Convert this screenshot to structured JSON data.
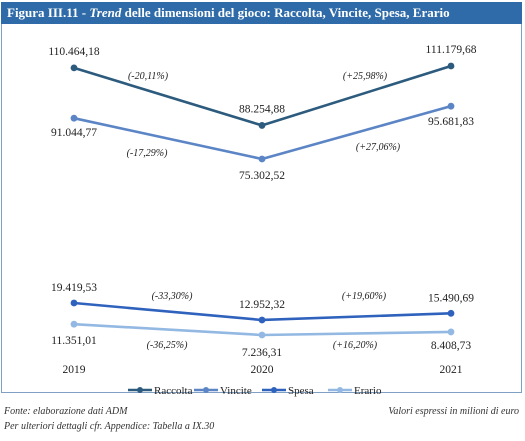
{
  "figure": {
    "title_prefix": "Figura III.11 - ",
    "title_italic": "Trend",
    "title_rest": " delle dimensioni del gioco: Raccolta, Vincite, Spesa, Erario"
  },
  "chart_data": {
    "type": "line",
    "categories": [
      "2019",
      "2020",
      "2021"
    ],
    "series": [
      {
        "name": "Raccolta",
        "color": "#2c5b7e",
        "values": [
          110464.18,
          88254.88,
          111179.68
        ],
        "value_labels": [
          "110.464,18",
          "88.254,88",
          "111.179,68"
        ],
        "change_labels": [
          "(-20,11%)",
          "(+25,98%)"
        ]
      },
      {
        "name": "Vincite",
        "color": "#5c85c6",
        "values": [
          91044.77,
          75302.52,
          95681.83
        ],
        "value_labels": [
          "91.044,77",
          "75.302,52",
          "95.681,83"
        ],
        "change_labels": [
          "(-17,29%)",
          "(+27,06%)"
        ]
      },
      {
        "name": "Spesa",
        "color": "#2f62bd",
        "values": [
          19419.53,
          12952.32,
          15490.69
        ],
        "value_labels": [
          "19.419,53",
          "12.952,32",
          "15.490,69"
        ],
        "change_labels": [
          "(-33,30%)",
          "(+19,60%)"
        ]
      },
      {
        "name": "Erario",
        "color": "#93b9e3",
        "values": [
          11351.01,
          7236.31,
          8408.73
        ],
        "value_labels": [
          "11.351,01",
          "7.236,31",
          "8.408,73"
        ],
        "change_labels": [
          "(-36,25%)",
          "(+16,20%)"
        ]
      }
    ],
    "legend": "bottom",
    "grid": false
  },
  "footer": {
    "source": "Fonte: elaborazione dati ADM",
    "details": "Per ulteriori dettagli cfr. Appendice: Tabella a IX.30",
    "units": "Valori espressi in milioni di euro"
  }
}
